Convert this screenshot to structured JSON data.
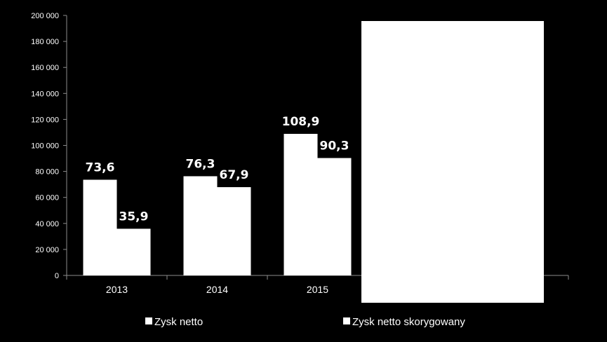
{
  "chart_data": {
    "type": "bar",
    "categories": [
      "2013",
      "2014",
      "2015"
    ],
    "series": [
      {
        "name": "Zysk netto",
        "values": [
          73600,
          76300,
          108900
        ],
        "labels": [
          "73,6",
          "76,3",
          "108,9"
        ],
        "color": "#ffffff"
      },
      {
        "name": "Zysk netto skorygowany",
        "values": [
          35900,
          67900,
          90300
        ],
        "labels": [
          "35,9",
          "67,9",
          "90,3"
        ],
        "color": "#ffffff"
      }
    ],
    "ylim": [
      0,
      200000
    ],
    "yticks": [
      0,
      20000,
      40000,
      60000,
      80000,
      100000,
      120000,
      140000,
      160000,
      180000,
      200000
    ],
    "ytick_labels": [
      "0",
      "20 000",
      "40 000",
      "60 000",
      "80 000",
      "100 000",
      "120 000",
      "140 000",
      "160 000",
      "180 000",
      "200 000"
    ],
    "grid": false,
    "legend_position": "bottom",
    "background": "#000000",
    "overlay_box_color": "#ffffff"
  }
}
